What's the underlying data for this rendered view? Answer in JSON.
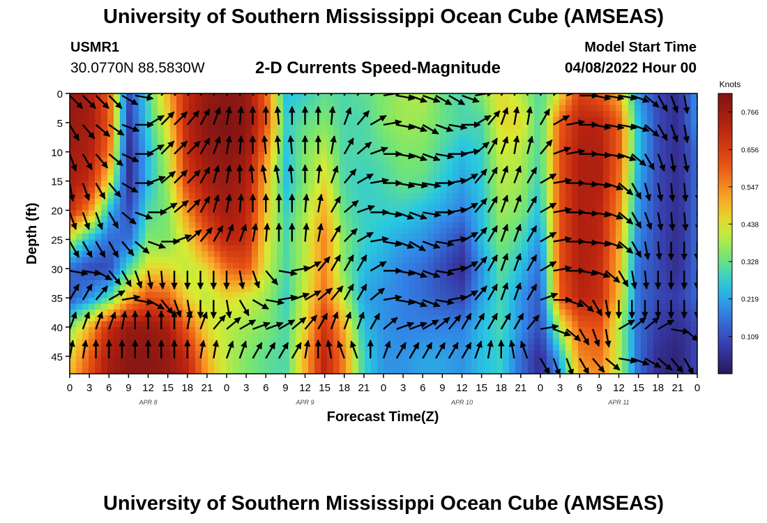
{
  "header": {
    "title": "University of Southern Mississippi Ocean Cube (AMSEAS)",
    "footer_title": "University of Southern Mississippi Ocean Cube (AMSEAS)",
    "station_id": "USMR1",
    "coordinates": "30.0770N  88.5830W",
    "plot_title": "2-D Currents Speed-Magnitude",
    "model_start_label": "Model Start Time",
    "model_start_value": "04/08/2022 Hour 00"
  },
  "chart_data": {
    "type": "heatmap",
    "title": "2-D Currents Speed-Magnitude",
    "xlabel": "Forecast Time(Z)",
    "ylabel": "Depth (ft)",
    "x_hours_range": [
      0,
      96
    ],
    "x_tick_labels": [
      "0",
      "3",
      "6",
      "9",
      "12",
      "15",
      "18",
      "21",
      "0",
      "3",
      "6",
      "9",
      "12",
      "15",
      "18",
      "21",
      "0",
      "3",
      "6",
      "9",
      "12",
      "15",
      "18",
      "21",
      "0",
      "3",
      "6",
      "9",
      "12",
      "15",
      "18",
      "21",
      "0"
    ],
    "date_labels": [
      {
        "label": "APR 8",
        "hour": 12
      },
      {
        "label": "APR 9",
        "hour": 36
      },
      {
        "label": "APR 10",
        "hour": 60
      },
      {
        "label": "APR 11",
        "hour": 84
      }
    ],
    "y_ticks": [
      0,
      5,
      10,
      15,
      20,
      25,
      30,
      35,
      40,
      45
    ],
    "ylim": [
      0,
      48
    ],
    "colorbar": {
      "unit": "Knots",
      "ticks": [
        "0.766",
        "0.656",
        "0.547",
        "0.438",
        "0.328",
        "0.219",
        "0.109"
      ],
      "range": [
        0.0,
        0.82
      ]
    },
    "speed_field": {
      "hours": [
        0,
        3,
        6,
        9,
        12,
        15,
        18,
        21,
        24,
        27,
        30,
        33,
        36,
        39,
        42,
        45,
        48,
        51,
        54,
        57,
        60,
        63,
        66,
        69,
        72,
        75,
        78,
        81,
        84,
        87,
        90,
        93,
        96
      ],
      "depths": [
        0,
        5,
        10,
        15,
        20,
        25,
        30,
        35,
        40,
        45,
        48
      ],
      "rows": [
        [
          0.78,
          0.75,
          0.6,
          0.1,
          0.3,
          0.5,
          0.7,
          0.78,
          0.8,
          0.78,
          0.6,
          0.25,
          0.28,
          0.32,
          0.3,
          0.32,
          0.35,
          0.38,
          0.4,
          0.33,
          0.3,
          0.35,
          0.45,
          0.4,
          0.3,
          0.45,
          0.65,
          0.6,
          0.5,
          0.2,
          0.1,
          0.05,
          0.2
        ],
        [
          0.78,
          0.76,
          0.62,
          0.08,
          0.28,
          0.45,
          0.72,
          0.8,
          0.82,
          0.8,
          0.62,
          0.28,
          0.32,
          0.35,
          0.3,
          0.3,
          0.35,
          0.38,
          0.37,
          0.33,
          0.3,
          0.3,
          0.45,
          0.45,
          0.3,
          0.6,
          0.72,
          0.72,
          0.6,
          0.25,
          0.1,
          0.05,
          0.2
        ],
        [
          0.76,
          0.74,
          0.58,
          0.05,
          0.25,
          0.4,
          0.7,
          0.78,
          0.8,
          0.78,
          0.55,
          0.26,
          0.35,
          0.4,
          0.3,
          0.3,
          0.32,
          0.35,
          0.35,
          0.3,
          0.25,
          0.28,
          0.42,
          0.4,
          0.3,
          0.62,
          0.74,
          0.74,
          0.6,
          0.25,
          0.1,
          0.05,
          0.15
        ],
        [
          0.75,
          0.7,
          0.45,
          0.05,
          0.25,
          0.38,
          0.65,
          0.75,
          0.78,
          0.75,
          0.5,
          0.25,
          0.35,
          0.45,
          0.3,
          0.28,
          0.3,
          0.33,
          0.32,
          0.27,
          0.22,
          0.27,
          0.4,
          0.38,
          0.28,
          0.62,
          0.74,
          0.74,
          0.58,
          0.22,
          0.1,
          0.05,
          0.15
        ],
        [
          0.7,
          0.55,
          0.25,
          0.1,
          0.3,
          0.35,
          0.55,
          0.7,
          0.76,
          0.72,
          0.48,
          0.28,
          0.38,
          0.5,
          0.32,
          0.28,
          0.28,
          0.28,
          0.25,
          0.22,
          0.18,
          0.25,
          0.38,
          0.35,
          0.25,
          0.62,
          0.74,
          0.72,
          0.55,
          0.2,
          0.1,
          0.05,
          0.15
        ],
        [
          0.4,
          0.25,
          0.15,
          0.15,
          0.35,
          0.35,
          0.45,
          0.6,
          0.72,
          0.7,
          0.45,
          0.3,
          0.4,
          0.55,
          0.35,
          0.28,
          0.25,
          0.22,
          0.2,
          0.15,
          0.1,
          0.25,
          0.35,
          0.3,
          0.2,
          0.62,
          0.74,
          0.72,
          0.52,
          0.18,
          0.1,
          0.05,
          0.15
        ],
        [
          0.15,
          0.1,
          0.1,
          0.3,
          0.45,
          0.45,
          0.4,
          0.45,
          0.58,
          0.62,
          0.42,
          0.3,
          0.4,
          0.55,
          0.35,
          0.25,
          0.22,
          0.18,
          0.15,
          0.1,
          0.05,
          0.2,
          0.32,
          0.25,
          0.15,
          0.62,
          0.74,
          0.7,
          0.5,
          0.15,
          0.1,
          0.05,
          0.15
        ],
        [
          0.12,
          0.2,
          0.3,
          0.5,
          0.62,
          0.6,
          0.45,
          0.4,
          0.45,
          0.42,
          0.38,
          0.28,
          0.42,
          0.58,
          0.4,
          0.22,
          0.2,
          0.18,
          0.15,
          0.12,
          0.1,
          0.22,
          0.3,
          0.2,
          0.12,
          0.6,
          0.72,
          0.7,
          0.48,
          0.15,
          0.1,
          0.08,
          0.15
        ],
        [
          0.35,
          0.5,
          0.7,
          0.78,
          0.78,
          0.75,
          0.6,
          0.45,
          0.4,
          0.38,
          0.35,
          0.3,
          0.45,
          0.68,
          0.5,
          0.25,
          0.2,
          0.18,
          0.18,
          0.18,
          0.18,
          0.25,
          0.3,
          0.2,
          0.1,
          0.4,
          0.6,
          0.62,
          0.4,
          0.15,
          0.08,
          0.05,
          0.1
        ],
        [
          0.45,
          0.6,
          0.75,
          0.8,
          0.8,
          0.78,
          0.7,
          0.5,
          0.4,
          0.35,
          0.32,
          0.3,
          0.5,
          0.72,
          0.55,
          0.28,
          0.2,
          0.2,
          0.22,
          0.22,
          0.2,
          0.25,
          0.28,
          0.15,
          0.05,
          0.25,
          0.55,
          0.58,
          0.4,
          0.15,
          0.05,
          0.03,
          0.1
        ],
        [
          0.48,
          0.62,
          0.76,
          0.8,
          0.8,
          0.78,
          0.72,
          0.52,
          0.4,
          0.35,
          0.32,
          0.3,
          0.5,
          0.72,
          0.55,
          0.28,
          0.2,
          0.2,
          0.22,
          0.22,
          0.2,
          0.25,
          0.28,
          0.15,
          0.05,
          0.2,
          0.5,
          0.55,
          0.4,
          0.15,
          0.05,
          0.03,
          0.1
        ]
      ]
    },
    "vector_field": {
      "hours": [
        0,
        2,
        4,
        6,
        8,
        10,
        12,
        14,
        16,
        18,
        20,
        22,
        24,
        26,
        28,
        30,
        32,
        34,
        36,
        38,
        40,
        42,
        44,
        46,
        48,
        50,
        52,
        54,
        56,
        58,
        60,
        62,
        64,
        66,
        68,
        70,
        72,
        74,
        76,
        78,
        80,
        82,
        84,
        86,
        88,
        90,
        92,
        94,
        96
      ],
      "depths": [
        0,
        5,
        10,
        15,
        20,
        25,
        30,
        35,
        40,
        45
      ],
      "direction_deg": [
        [
          135,
          135,
          135,
          135,
          120,
          100,
          60,
          40,
          40,
          40,
          30,
          20,
          20,
          20,
          20,
          10,
          0,
          0,
          0,
          0,
          0,
          10,
          30,
          60,
          80,
          100,
          110,
          110,
          120,
          120,
          110,
          80,
          50,
          30,
          20,
          10,
          20,
          40,
          70,
          90,
          100,
          100,
          100,
          110,
          130,
          150,
          160,
          170,
          170
        ],
        [
          150,
          140,
          130,
          125,
          110,
          90,
          60,
          45,
          45,
          40,
          30,
          20,
          10,
          5,
          0,
          0,
          -5,
          0,
          0,
          0,
          5,
          20,
          40,
          60,
          80,
          100,
          110,
          120,
          110,
          100,
          90,
          60,
          40,
          20,
          10,
          10,
          30,
          60,
          80,
          90,
          100,
          100,
          100,
          110,
          130,
          150,
          160,
          170,
          170
        ],
        [
          160,
          150,
          140,
          130,
          115,
          90,
          60,
          45,
          45,
          45,
          30,
          20,
          10,
          5,
          0,
          -5,
          -5,
          -5,
          0,
          0,
          10,
          30,
          50,
          70,
          90,
          100,
          110,
          110,
          100,
          90,
          80,
          50,
          30,
          20,
          10,
          15,
          40,
          70,
          80,
          90,
          95,
          100,
          110,
          130,
          150,
          160,
          170,
          170,
          170
        ],
        [
          170,
          160,
          150,
          140,
          120,
          90,
          70,
          50,
          45,
          45,
          30,
          15,
          10,
          0,
          -5,
          -10,
          -10,
          -5,
          0,
          5,
          20,
          40,
          60,
          80,
          90,
          100,
          100,
          100,
          90,
          80,
          60,
          40,
          30,
          20,
          20,
          30,
          60,
          80,
          90,
          95,
          100,
          110,
          130,
          150,
          165,
          170,
          175,
          175,
          175
        ],
        [
          160,
          160,
          160,
          150,
          130,
          110,
          90,
          60,
          50,
          45,
          30,
          15,
          10,
          5,
          0,
          0,
          0,
          0,
          5,
          10,
          30,
          50,
          70,
          90,
          100,
          110,
          110,
          100,
          90,
          80,
          60,
          40,
          30,
          20,
          20,
          30,
          60,
          80,
          90,
          95,
          100,
          110,
          130,
          150,
          160,
          170,
          175,
          175,
          175
        ],
        [
          150,
          150,
          150,
          150,
          140,
          130,
          110,
          90,
          70,
          50,
          40,
          30,
          20,
          20,
          10,
          5,
          0,
          0,
          5,
          10,
          30,
          45,
          60,
          80,
          100,
          110,
          120,
          110,
          100,
          80,
          60,
          40,
          30,
          20,
          20,
          30,
          60,
          80,
          90,
          95,
          100,
          110,
          130,
          150,
          170,
          175,
          180,
          180,
          180
        ],
        [
          100,
          100,
          120,
          140,
          150,
          160,
          170,
          175,
          180,
          180,
          180,
          180,
          180,
          170,
          160,
          140,
          100,
          80,
          60,
          40,
          30,
          30,
          30,
          60,
          90,
          100,
          110,
          110,
          100,
          80,
          60,
          40,
          30,
          20,
          20,
          30,
          60,
          80,
          90,
          100,
          110,
          130,
          150,
          170,
          175,
          180,
          180,
          180,
          180
        ],
        [
          30,
          30,
          40,
          60,
          80,
          100,
          120,
          140,
          160,
          170,
          180,
          180,
          170,
          150,
          120,
          100,
          80,
          70,
          60,
          50,
          40,
          30,
          30,
          50,
          80,
          100,
          110,
          110,
          100,
          80,
          60,
          40,
          30,
          20,
          20,
          30,
          70,
          90,
          110,
          130,
          150,
          170,
          180,
          180,
          180,
          180,
          180,
          180,
          180
        ],
        [
          20,
          20,
          20,
          20,
          10,
          0,
          0,
          0,
          0,
          10,
          20,
          40,
          50,
          60,
          70,
          70,
          60,
          50,
          40,
          30,
          20,
          20,
          20,
          30,
          50,
          70,
          70,
          60,
          50,
          40,
          30,
          30,
          30,
          30,
          30,
          40,
          80,
          110,
          130,
          150,
          160,
          170,
          60,
          50,
          50,
          60,
          100,
          130,
          150
        ],
        [
          10,
          10,
          0,
          0,
          0,
          0,
          0,
          0,
          0,
          0,
          10,
          10,
          20,
          20,
          30,
          30,
          30,
          30,
          10,
          0,
          -10,
          -20,
          -20,
          0,
          20,
          30,
          30,
          30,
          30,
          30,
          30,
          20,
          10,
          0,
          -10,
          -20,
          150,
          160,
          160,
          150,
          140,
          130,
          100,
          110,
          120,
          130,
          140,
          150,
          160
        ]
      ]
    }
  }
}
